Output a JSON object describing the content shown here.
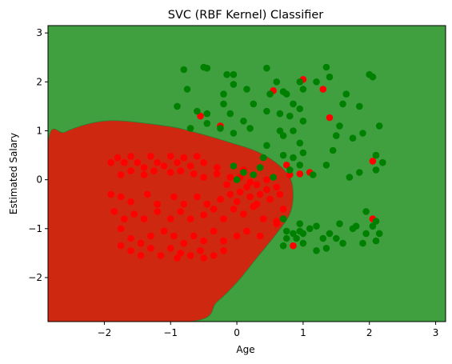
{
  "chart_data": {
    "type": "scatter",
    "title": "SVC (RBF Kernel) Classifier",
    "xlabel": "Age",
    "ylabel": "Estimated Salary",
    "xlim": [
      -2.85,
      3.15
    ],
    "ylim": [
      -2.9,
      3.15
    ],
    "xticks": [
      -2,
      -1,
      0,
      1,
      2,
      3
    ],
    "yticks": [
      -2,
      -1,
      0,
      1,
      2,
      3
    ],
    "grid": false,
    "regions": [
      {
        "class": "0",
        "color": "#ff0000"
      },
      {
        "class": "1",
        "color": "#008000"
      }
    ],
    "decision_boundary": [
      [
        -2.85,
        0.75
      ],
      [
        -2.6,
        0.97
      ],
      [
        -2.3,
        1.12
      ],
      [
        -2.0,
        1.2
      ],
      [
        -1.7,
        1.2
      ],
      [
        -1.3,
        1.14
      ],
      [
        -0.9,
        1.06
      ],
      [
        -0.5,
        0.92
      ],
      [
        -0.1,
        0.76
      ],
      [
        0.3,
        0.58
      ],
      [
        0.6,
        0.34
      ],
      [
        0.8,
        0.05
      ],
      [
        0.85,
        -0.3
      ],
      [
        0.8,
        -0.7
      ],
      [
        0.6,
        -1.1
      ],
      [
        0.3,
        -1.6
      ],
      [
        0.0,
        -2.1
      ],
      [
        -0.3,
        -2.5
      ],
      [
        -0.7,
        -2.9
      ],
      [
        -2.85,
        -2.9
      ],
      [
        -2.85,
        -2.2
      ]
    ],
    "series": [
      {
        "color": "#ff0000",
        "points": [
          [
            -1.9,
            0.35
          ],
          [
            -1.8,
            0.45
          ],
          [
            -1.7,
            0.35
          ],
          [
            -1.6,
            0.48
          ],
          [
            -1.5,
            0.35
          ],
          [
            -1.4,
            0.25
          ],
          [
            -1.3,
            0.48
          ],
          [
            -1.2,
            0.35
          ],
          [
            -1.1,
            0.28
          ],
          [
            -1.0,
            0.48
          ],
          [
            -0.9,
            0.35
          ],
          [
            -0.8,
            0.45
          ],
          [
            -0.7,
            0.28
          ],
          [
            -0.6,
            0.48
          ],
          [
            -0.5,
            0.35
          ],
          [
            -1.75,
            0.1
          ],
          [
            -1.6,
            0.18
          ],
          [
            -1.4,
            0.1
          ],
          [
            -1.25,
            0.18
          ],
          [
            -1.0,
            0.15
          ],
          [
            -0.85,
            0.18
          ],
          [
            -0.65,
            0.12
          ],
          [
            -0.5,
            0.05
          ],
          [
            -0.3,
            0.12
          ],
          [
            -0.1,
            0.05
          ],
          [
            -1.9,
            -0.3
          ],
          [
            -1.75,
            -0.35
          ],
          [
            -1.6,
            -0.45
          ],
          [
            -1.35,
            -0.3
          ],
          [
            -1.2,
            -0.5
          ],
          [
            -0.95,
            -0.35
          ],
          [
            -0.8,
            -0.5
          ],
          [
            -0.6,
            -0.35
          ],
          [
            -0.45,
            -0.5
          ],
          [
            -0.25,
            -0.4
          ],
          [
            -0.1,
            -0.3
          ],
          [
            0.05,
            -0.25
          ],
          [
            0.2,
            -0.35
          ],
          [
            0.35,
            -0.3
          ],
          [
            0.5,
            -0.4
          ],
          [
            0.65,
            -0.3
          ],
          [
            -1.85,
            -0.65
          ],
          [
            -1.7,
            -0.8
          ],
          [
            -1.55,
            -0.7
          ],
          [
            -1.4,
            -0.8
          ],
          [
            -1.2,
            -0.65
          ],
          [
            -1.0,
            -0.8
          ],
          [
            -0.85,
            -0.65
          ],
          [
            -0.7,
            -0.8
          ],
          [
            -0.5,
            -0.72
          ],
          [
            -0.35,
            -0.6
          ],
          [
            -0.2,
            -0.8
          ],
          [
            -0.05,
            -0.6
          ],
          [
            0.1,
            -0.7
          ],
          [
            0.25,
            -0.55
          ],
          [
            0.4,
            -0.8
          ],
          [
            0.6,
            -0.85
          ],
          [
            -1.75,
            -1.0
          ],
          [
            -1.6,
            -1.2
          ],
          [
            -1.45,
            -1.3
          ],
          [
            -1.3,
            -1.15
          ],
          [
            -1.1,
            -1.05
          ],
          [
            -0.95,
            -1.15
          ],
          [
            -0.8,
            -1.3
          ],
          [
            -0.65,
            -1.15
          ],
          [
            -0.5,
            -1.25
          ],
          [
            -0.35,
            -1.05
          ],
          [
            -0.2,
            -1.25
          ],
          [
            0.0,
            -1.15
          ],
          [
            0.15,
            -1.05
          ],
          [
            0.35,
            -1.15
          ],
          [
            -1.75,
            -1.35
          ],
          [
            -1.6,
            -1.45
          ],
          [
            -1.45,
            -1.55
          ],
          [
            -1.3,
            -1.4
          ],
          [
            -1.15,
            -1.55
          ],
          [
            -1.0,
            -1.4
          ],
          [
            -0.85,
            -1.5
          ],
          [
            -0.7,
            -1.55
          ],
          [
            -0.55,
            -1.45
          ],
          [
            -0.35,
            -1.55
          ],
          [
            -0.2,
            -1.45
          ],
          [
            -0.5,
            -1.6
          ],
          [
            -0.9,
            -1.6
          ],
          [
            -0.55,
            1.3
          ],
          [
            -0.25,
            1.1
          ],
          [
            0.05,
            0.05
          ],
          [
            0.15,
            -0.15
          ],
          [
            0.3,
            -0.1
          ],
          [
            0.45,
            0.0
          ],
          [
            0.6,
            -0.15
          ],
          [
            0.8,
            0.1
          ],
          [
            0.95,
            0.12
          ],
          [
            0.6,
            -0.9
          ],
          [
            0.85,
            -1.35
          ],
          [
            0.55,
            1.82
          ],
          [
            1.0,
            2.05
          ],
          [
            1.3,
            1.85
          ],
          [
            1.4,
            1.27
          ],
          [
            2.05,
            0.38
          ],
          [
            2.05,
            -0.8
          ],
          [
            1.1,
            0.15
          ],
          [
            -0.3,
            0.25
          ],
          [
            0.1,
            0.2
          ],
          [
            0.2,
            -0.05
          ],
          [
            0.45,
            -0.2
          ],
          [
            -0.15,
            -0.1
          ],
          [
            0.0,
            -0.45
          ],
          [
            0.3,
            -0.5
          ],
          [
            0.7,
            -0.6
          ],
          [
            0.75,
            0.3
          ]
        ]
      },
      {
        "color": "#008000",
        "points": [
          [
            -0.8,
            2.25
          ],
          [
            -0.5,
            2.3
          ],
          [
            -0.45,
            2.28
          ],
          [
            -0.15,
            2.15
          ],
          [
            -0.05,
            2.15
          ],
          [
            0.45,
            2.28
          ],
          [
            -0.05,
            1.95
          ],
          [
            -0.2,
            1.75
          ],
          [
            0.15,
            1.85
          ],
          [
            0.5,
            1.75
          ],
          [
            0.6,
            2.0
          ],
          [
            0.7,
            1.8
          ],
          [
            0.75,
            1.75
          ],
          [
            0.95,
            2.0
          ],
          [
            1.0,
            1.85
          ],
          [
            1.2,
            2.0
          ],
          [
            1.35,
            2.3
          ],
          [
            1.4,
            2.1
          ],
          [
            1.6,
            1.55
          ],
          [
            1.65,
            1.75
          ],
          [
            1.85,
            1.5
          ],
          [
            2.0,
            2.15
          ],
          [
            2.05,
            2.1
          ],
          [
            -0.9,
            1.5
          ],
          [
            -0.75,
            1.85
          ],
          [
            -0.6,
            1.4
          ],
          [
            -0.45,
            1.35
          ],
          [
            -0.2,
            1.55
          ],
          [
            -0.1,
            1.35
          ],
          [
            0.1,
            1.2
          ],
          [
            0.25,
            1.55
          ],
          [
            0.45,
            1.4
          ],
          [
            0.65,
            1.35
          ],
          [
            0.85,
            1.55
          ],
          [
            0.95,
            1.45
          ],
          [
            1.0,
            1.2
          ],
          [
            0.8,
            1.3
          ],
          [
            0.85,
            1.0
          ],
          [
            0.7,
            0.9
          ],
          [
            0.95,
            0.75
          ],
          [
            1.0,
            0.55
          ],
          [
            0.85,
            0.45
          ],
          [
            0.95,
            0.3
          ],
          [
            1.15,
            0.1
          ],
          [
            1.35,
            0.3
          ],
          [
            1.45,
            0.6
          ],
          [
            1.5,
            0.9
          ],
          [
            1.55,
            1.1
          ],
          [
            1.75,
            0.85
          ],
          [
            1.9,
            0.95
          ],
          [
            2.1,
            0.5
          ],
          [
            2.15,
            1.1
          ],
          [
            2.1,
            0.2
          ],
          [
            2.2,
            0.35
          ],
          [
            1.85,
            0.15
          ],
          [
            1.7,
            0.05
          ],
          [
            -0.7,
            1.05
          ],
          [
            -0.45,
            1.15
          ],
          [
            -0.25,
            1.05
          ],
          [
            -0.05,
            0.95
          ],
          [
            0.2,
            1.05
          ],
          [
            0.45,
            0.7
          ],
          [
            0.65,
            1.0
          ],
          [
            0.7,
            0.5
          ],
          [
            0.8,
            0.2
          ],
          [
            0.4,
            0.45
          ],
          [
            0.25,
            0.1
          ],
          [
            0.1,
            0.15
          ],
          [
            -0.05,
            0.28
          ],
          [
            0.0,
            0.0
          ],
          [
            0.35,
            0.25
          ],
          [
            0.55,
            0.05
          ],
          [
            0.7,
            -0.8
          ],
          [
            0.75,
            -1.05
          ],
          [
            0.7,
            -1.35
          ],
          [
            0.85,
            -1.1
          ],
          [
            0.95,
            -1.05
          ],
          [
            1.0,
            -1.1
          ],
          [
            1.1,
            -1.0
          ],
          [
            1.2,
            -0.95
          ],
          [
            1.3,
            -1.2
          ],
          [
            1.4,
            -1.1
          ],
          [
            1.5,
            -1.2
          ],
          [
            1.55,
            -0.9
          ],
          [
            1.75,
            -1.0
          ],
          [
            1.8,
            -0.95
          ],
          [
            1.95,
            -1.1
          ],
          [
            2.05,
            -0.95
          ],
          [
            2.1,
            -0.85
          ],
          [
            2.15,
            -1.1
          ],
          [
            2.1,
            -1.25
          ],
          [
            1.9,
            -1.3
          ],
          [
            1.6,
            -1.3
          ],
          [
            1.35,
            -1.4
          ],
          [
            1.2,
            -1.45
          ],
          [
            1.0,
            -1.3
          ],
          [
            0.9,
            -1.2
          ],
          [
            0.75,
            -1.2
          ],
          [
            0.95,
            -0.9
          ],
          [
            1.95,
            -0.65
          ]
        ]
      }
    ]
  }
}
